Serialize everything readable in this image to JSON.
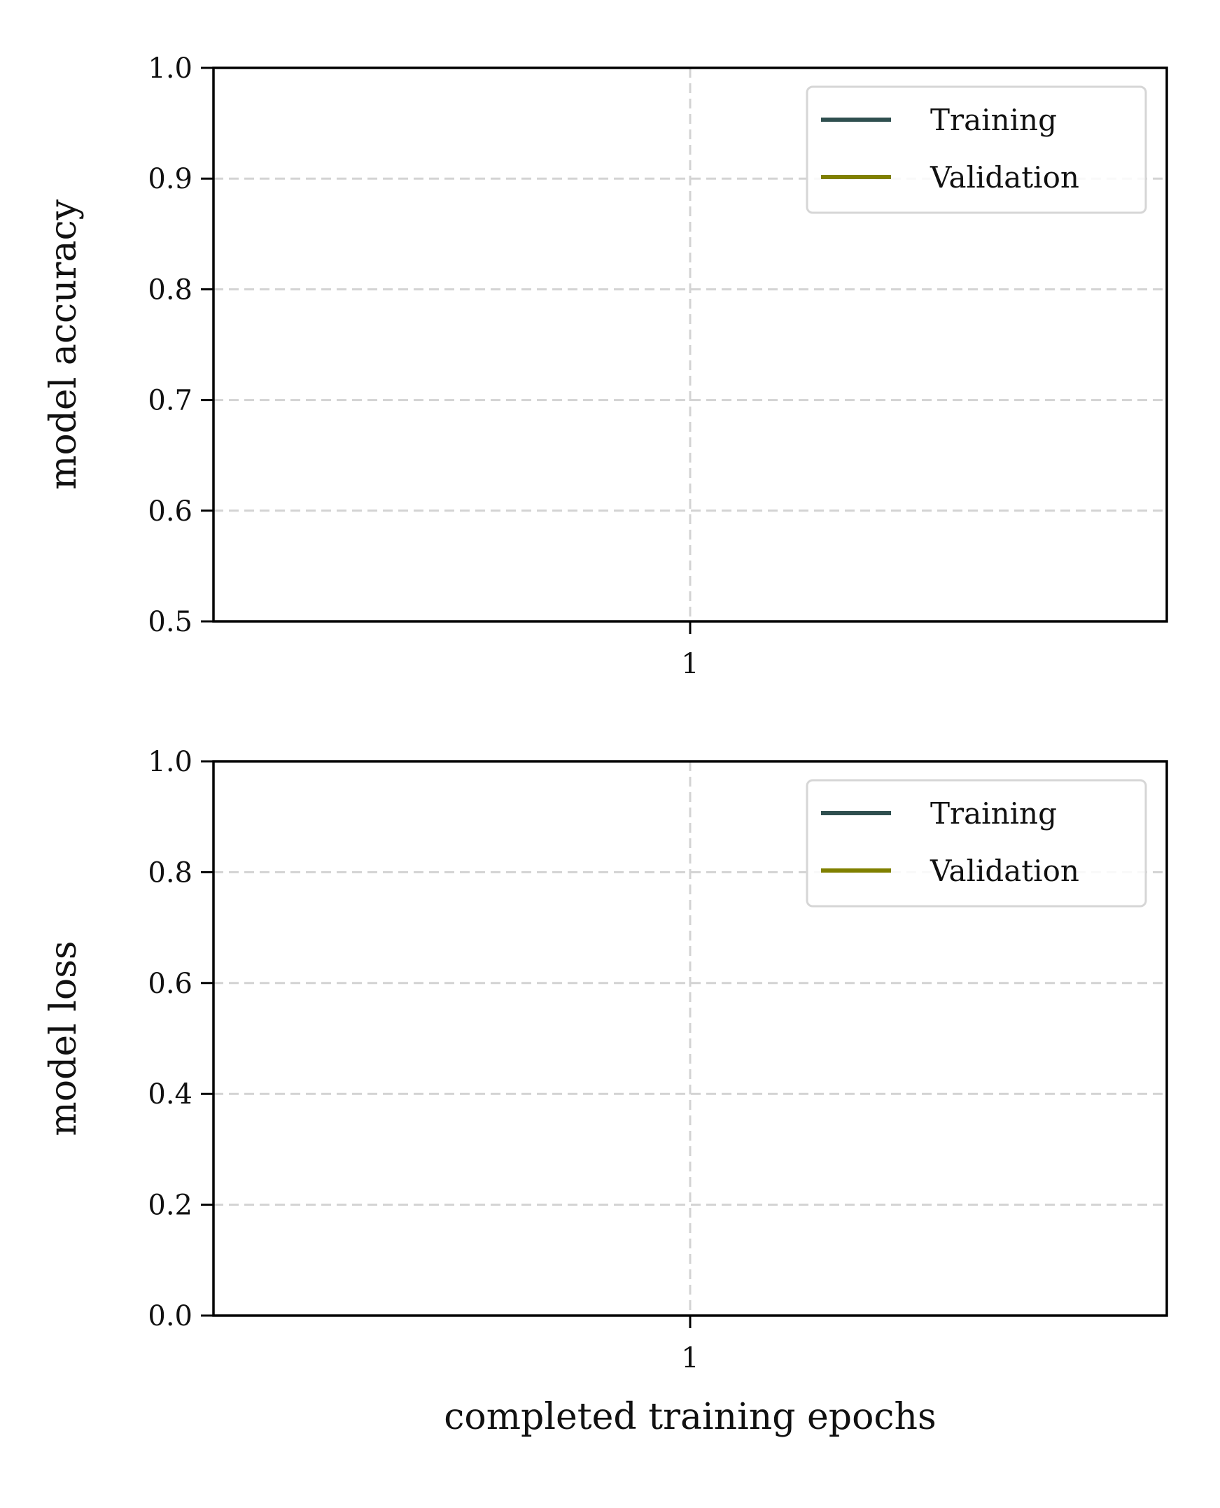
{
  "chart_data": [
    {
      "type": "line",
      "title": "",
      "xlabel": "",
      "ylabel": "model accuracy",
      "x_ticks": [
        "1"
      ],
      "xlim": [
        0,
        2
      ],
      "ylim": [
        0.5,
        1.0
      ],
      "y_ticks": [
        "0.5",
        "0.6",
        "0.7",
        "0.8",
        "0.9",
        "1.0"
      ],
      "grid": true,
      "legend_position": "top-right",
      "series": [
        {
          "name": "Training",
          "color": "#2f4f4f",
          "x": [],
          "values": []
        },
        {
          "name": "Validation",
          "color": "#808000",
          "x": [],
          "values": []
        }
      ]
    },
    {
      "type": "line",
      "title": "",
      "xlabel": "completed training epochs",
      "ylabel": "model loss",
      "x_ticks": [
        "1"
      ],
      "xlim": [
        0,
        2
      ],
      "ylim": [
        0.0,
        1.0
      ],
      "y_ticks": [
        "0.0",
        "0.2",
        "0.4",
        "0.6",
        "0.8",
        "1.0"
      ],
      "grid": true,
      "legend_position": "top-right",
      "series": [
        {
          "name": "Training",
          "color": "#2f4f4f",
          "x": [],
          "values": []
        },
        {
          "name": "Validation",
          "color": "#808000",
          "x": [],
          "values": []
        }
      ]
    }
  ]
}
